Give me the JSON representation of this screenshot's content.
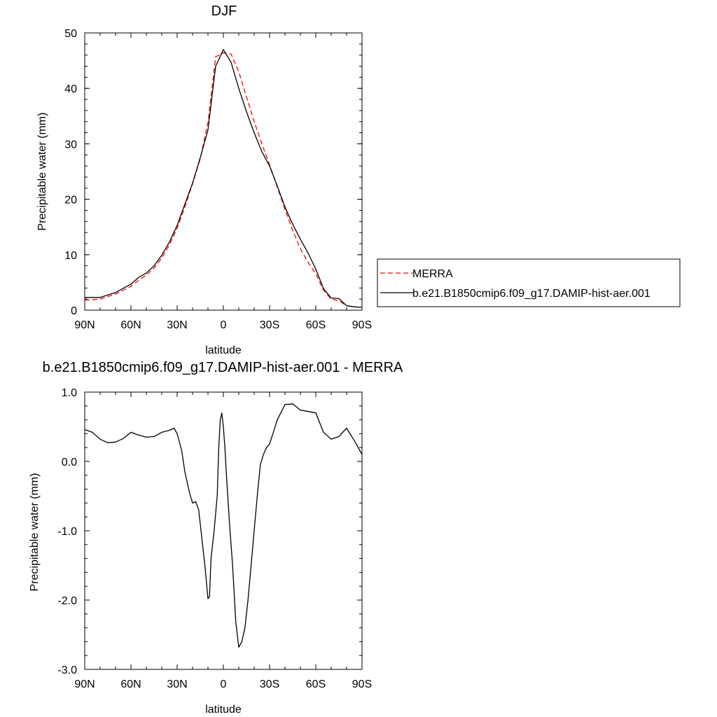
{
  "chart_data": [
    {
      "type": "line",
      "title": "DJF",
      "xlabel": "latitude",
      "ylabel": "Precipitable water (mm)",
      "xlim": [
        90,
        -90
      ],
      "ylim": [
        0,
        50
      ],
      "xticks": [
        90,
        60,
        30,
        0,
        -30,
        -60,
        -90
      ],
      "xtick_labels": [
        "90N",
        "60N",
        "30N",
        "0",
        "30S",
        "60S",
        "90S"
      ],
      "yticks": [
        0,
        10,
        20,
        30,
        40,
        50
      ],
      "ytick_labels": [
        "0",
        "10",
        "20",
        "30",
        "40",
        "50"
      ],
      "legend_position": "right",
      "series": [
        {
          "name": "MERRA",
          "color": "#ff0000",
          "dash": "dashed",
          "x": [
            90,
            80,
            70,
            60,
            55,
            50,
            45,
            40,
            35,
            30,
            25,
            20,
            15,
            10,
            5,
            0,
            -5,
            -10,
            -15,
            -20,
            -25,
            -30,
            -35,
            -40,
            -45,
            -50,
            -55,
            -60,
            -65,
            -70,
            -75,
            -80,
            -85,
            -90
          ],
          "y": [
            1.8,
            2.0,
            2.9,
            4.3,
            5.4,
            6.3,
            7.6,
            9.4,
            11.8,
            14.8,
            18.6,
            22.8,
            27.3,
            33.8,
            45.7,
            46.4,
            46.2,
            43.0,
            38.5,
            34.0,
            30.0,
            26.2,
            22.2,
            18.2,
            14.4,
            11.1,
            8.6,
            6.6,
            3.6,
            2.0,
            1.7,
            0.8,
            0.6,
            0.5
          ]
        },
        {
          "name": "b.e21.B1850cmip6.f09_g17.DAMIP-hist-aer.001",
          "color": "#000000",
          "dash": "solid",
          "x": [
            90,
            80,
            70,
            60,
            55,
            50,
            45,
            40,
            35,
            30,
            25,
            20,
            15,
            10,
            5,
            0,
            -5,
            -10,
            -15,
            -20,
            -25,
            -30,
            -35,
            -40,
            -45,
            -50,
            -55,
            -60,
            -65,
            -70,
            -75,
            -80,
            -85,
            -90
          ],
          "y": [
            2.3,
            2.3,
            3.2,
            4.7,
            5.9,
            6.7,
            8.0,
            9.9,
            12.3,
            15.3,
            19.1,
            22.9,
            27.5,
            32.5,
            44.0,
            47.0,
            44.7,
            40.0,
            35.8,
            32.0,
            28.6,
            26.0,
            22.4,
            18.6,
            15.5,
            12.8,
            10.3,
            7.4,
            3.9,
            2.2,
            2.1,
            0.8,
            0.6,
            0.5
          ]
        }
      ]
    },
    {
      "type": "line",
      "title": "b.e21.B1850cmip6.f09_g17.DAMIP-hist-aer.001 - MERRA",
      "xlabel": "latitude",
      "ylabel": "Precipitable water (mm)",
      "xlim": [
        90,
        -90
      ],
      "ylim": [
        -3.0,
        1.0
      ],
      "xticks": [
        90,
        60,
        30,
        0,
        -30,
        -60,
        -90
      ],
      "xtick_labels": [
        "90N",
        "60N",
        "30N",
        "0",
        "30S",
        "60S",
        "90S"
      ],
      "yticks": [
        1.0,
        0.0,
        -1.0,
        -2.0,
        -3.0
      ],
      "ytick_labels": [
        "1.0",
        "0.0",
        "-1.0",
        "-2.0",
        "-3.0"
      ],
      "series": [
        {
          "color": "#000000",
          "dash": "solid",
          "x": [
            90,
            85,
            80,
            75,
            70,
            65,
            60,
            55,
            50,
            45,
            40,
            35,
            32,
            30,
            27,
            25,
            22,
            20,
            18,
            16,
            14,
            12,
            10,
            9,
            8,
            6,
            4,
            3,
            2,
            1,
            0,
            -1,
            -2,
            -4,
            -6,
            -8,
            -10,
            -12,
            -14,
            -16,
            -18,
            -20,
            -22,
            -24,
            -26,
            -28,
            -30,
            -35,
            -40,
            -45,
            -50,
            -55,
            -60,
            -65,
            -70,
            -75,
            -80,
            -85,
            -90
          ],
          "y": [
            0.46,
            0.42,
            0.32,
            0.27,
            0.28,
            0.33,
            0.42,
            0.38,
            0.35,
            0.36,
            0.42,
            0.45,
            0.48,
            0.4,
            0.15,
            -0.15,
            -0.45,
            -0.6,
            -0.58,
            -0.7,
            -1.1,
            -1.5,
            -1.98,
            -1.95,
            -1.4,
            -1.0,
            -0.5,
            0.2,
            0.6,
            0.7,
            0.5,
            0.2,
            -0.2,
            -0.9,
            -1.5,
            -2.3,
            -2.68,
            -2.6,
            -2.4,
            -2.0,
            -1.5,
            -1.0,
            -0.5,
            -0.05,
            0.1,
            0.2,
            0.25,
            0.6,
            0.82,
            0.83,
            0.74,
            0.72,
            0.7,
            0.42,
            0.32,
            0.36,
            0.48,
            0.3,
            0.1
          ]
        }
      ]
    }
  ],
  "legend": {
    "entries": [
      "MERRA",
      "b.e21.B1850cmip6.f09_g17.DAMIP-hist-aer.001"
    ]
  }
}
